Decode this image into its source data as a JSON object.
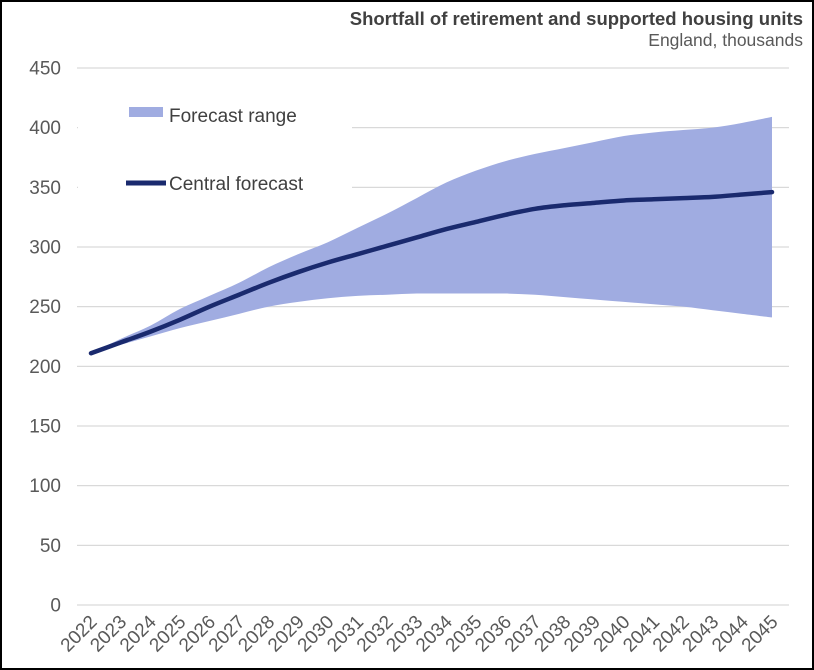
{
  "title": "Shortfall of retirement and supported housing units",
  "subtitle": "England, thousands",
  "legend": {
    "forecast_range_label": "Forecast range",
    "central_forecast_label": "Central forecast"
  },
  "chart_data": {
    "type": "area",
    "title": "Shortfall of retirement and supported housing units",
    "subtitle": "England, thousands",
    "x": [
      2022,
      2023,
      2024,
      2025,
      2026,
      2027,
      2028,
      2029,
      2030,
      2031,
      2032,
      2033,
      2034,
      2035,
      2036,
      2037,
      2038,
      2039,
      2040,
      2041,
      2042,
      2043,
      2044,
      2045
    ],
    "series": [
      {
        "name": "Forecast range",
        "type": "band",
        "upper": [
          211,
          223,
          234,
          248,
          259,
          270,
          283,
          294,
          304,
          316,
          328,
          341,
          354,
          364,
          372,
          378,
          383,
          388,
          393,
          396,
          398,
          400,
          404,
          409
        ],
        "lower": [
          211,
          218,
          225,
          232,
          238,
          244,
          250,
          254,
          257,
          259,
          260,
          261,
          261,
          261,
          261,
          260,
          258,
          256,
          254,
          252,
          250,
          247,
          244,
          241
        ]
      },
      {
        "name": "Central forecast",
        "type": "line",
        "values": [
          211,
          220,
          229,
          239,
          250,
          260,
          270,
          279,
          287,
          294,
          301,
          308,
          315,
          321,
          327,
          332,
          335,
          337,
          339,
          340,
          341,
          342,
          344,
          346
        ]
      }
    ],
    "ylim": [
      0,
      450
    ],
    "yticks": [
      0,
      50,
      100,
      150,
      200,
      250,
      300,
      350,
      400,
      450
    ],
    "grid": "horizontal",
    "legend_position": "top-left-inside",
    "colors": {
      "band": "#a0ace1",
      "line": "#1a2a6e",
      "grid": "#d9d9d9",
      "axis_text": "#595959",
      "title_text": "#404040",
      "legend_text": "#404040"
    }
  }
}
